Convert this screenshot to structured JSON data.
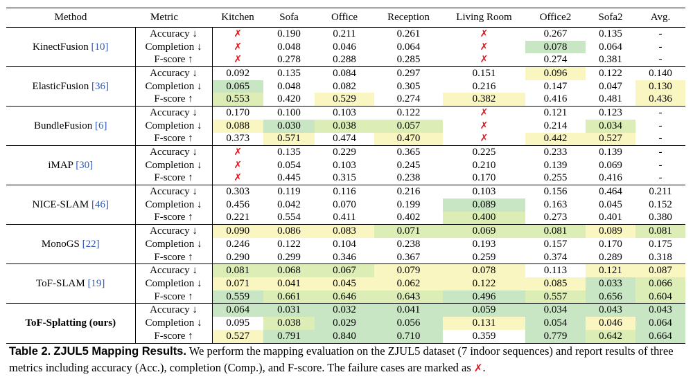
{
  "table": {
    "headers": [
      "Method",
      "Metric",
      "Kitchen",
      "Sofa",
      "Office",
      "Reception",
      "Living Room",
      "Office2",
      "Sofa2",
      "Avg."
    ],
    "fail_symbol": "✗",
    "colors": {
      "green": "#c9e6c4",
      "yellow": "#faf6c1",
      "yellow_green": "#dceeb6",
      "fail_red": "#e3141c",
      "cite_blue": "#2f58b6"
    },
    "groups": [
      {
        "method": "KinectFusion",
        "cite": "[10]",
        "bold": false,
        "rows": [
          {
            "metric": "Accuracy ↓",
            "cells": [
              {
                "v": "✗",
                "fail": true
              },
              {
                "v": "0.190"
              },
              {
                "v": "0.211"
              },
              {
                "v": "0.261"
              },
              {
                "v": "✗",
                "fail": true
              },
              {
                "v": "0.267"
              },
              {
                "v": "0.135"
              },
              {
                "v": "-"
              }
            ]
          },
          {
            "metric": "Completion ↓",
            "cells": [
              {
                "v": "✗",
                "fail": true
              },
              {
                "v": "0.048"
              },
              {
                "v": "0.046"
              },
              {
                "v": "0.064"
              },
              {
                "v": "✗",
                "fail": true
              },
              {
                "v": "0.078",
                "bg": "g"
              },
              {
                "v": "0.064"
              },
              {
                "v": "-"
              }
            ]
          },
          {
            "metric": "F-score ↑",
            "cells": [
              {
                "v": "✗",
                "fail": true
              },
              {
                "v": "0.278"
              },
              {
                "v": "0.288"
              },
              {
                "v": "0.285"
              },
              {
                "v": "✗",
                "fail": true
              },
              {
                "v": "0.274"
              },
              {
                "v": "0.381"
              },
              {
                "v": "-"
              }
            ]
          }
        ]
      },
      {
        "method": "ElasticFusion",
        "cite": "[36]",
        "bold": false,
        "rows": [
          {
            "metric": "Accuracy ↓",
            "cells": [
              {
                "v": "0.092"
              },
              {
                "v": "0.135"
              },
              {
                "v": "0.084"
              },
              {
                "v": "0.297"
              },
              {
                "v": "0.151"
              },
              {
                "v": "0.096",
                "bg": "y"
              },
              {
                "v": "0.122"
              },
              {
                "v": "0.140"
              }
            ]
          },
          {
            "metric": "Completion ↓",
            "cells": [
              {
                "v": "0.065",
                "bold": true,
                "bg": "g"
              },
              {
                "v": "0.048"
              },
              {
                "v": "0.082"
              },
              {
                "v": "0.305"
              },
              {
                "v": "0.216"
              },
              {
                "v": "0.147"
              },
              {
                "v": "0.047"
              },
              {
                "v": "0.130",
                "bg": "y"
              }
            ]
          },
          {
            "metric": "F-score ↑",
            "cells": [
              {
                "v": "0.553",
                "bg": "gy"
              },
              {
                "v": "0.420"
              },
              {
                "v": "0.529",
                "bg": "y"
              },
              {
                "v": "0.274"
              },
              {
                "v": "0.382",
                "bg": "y"
              },
              {
                "v": "0.416"
              },
              {
                "v": "0.481"
              },
              {
                "v": "0.436",
                "bg": "y"
              }
            ]
          }
        ]
      },
      {
        "method": "BundleFusion",
        "cite": "[6]",
        "bold": false,
        "rows": [
          {
            "metric": "Accuracy ↓",
            "cells": [
              {
                "v": "0.170"
              },
              {
                "v": "0.100"
              },
              {
                "v": "0.103"
              },
              {
                "v": "0.122"
              },
              {
                "v": "✗",
                "fail": true
              },
              {
                "v": "0.121"
              },
              {
                "v": "0.123"
              },
              {
                "v": "-"
              }
            ]
          },
          {
            "metric": "Completion ↓",
            "cells": [
              {
                "v": "0.088",
                "bg": "y"
              },
              {
                "v": "0.030",
                "bold": true,
                "bg": "g"
              },
              {
                "v": "0.038",
                "bg": "gy"
              },
              {
                "v": "0.057",
                "bg": "gy"
              },
              {
                "v": "✗",
                "fail": true
              },
              {
                "v": "0.214"
              },
              {
                "v": "0.034",
                "bg": "gy"
              },
              {
                "v": "-"
              }
            ]
          },
          {
            "metric": "F-score ↑",
            "cells": [
              {
                "v": "0.373"
              },
              {
                "v": "0.571",
                "bg": "y"
              },
              {
                "v": "0.474"
              },
              {
                "v": "0.470",
                "bg": "y"
              },
              {
                "v": "✗",
                "fail": true
              },
              {
                "v": "0.442",
                "bg": "y"
              },
              {
                "v": "0.527",
                "bg": "y"
              },
              {
                "v": "-"
              }
            ]
          }
        ]
      },
      {
        "method": "iMAP",
        "cite": "[30]",
        "bold": false,
        "rows": [
          {
            "metric": "Accuracy ↓",
            "cells": [
              {
                "v": "✗",
                "fail": true
              },
              {
                "v": "0.135"
              },
              {
                "v": "0.229"
              },
              {
                "v": "0.365"
              },
              {
                "v": "0.225"
              },
              {
                "v": "0.233"
              },
              {
                "v": "0.139"
              },
              {
                "v": "-"
              }
            ]
          },
          {
            "metric": "Completion ↓",
            "cells": [
              {
                "v": "✗",
                "fail": true
              },
              {
                "v": "0.054"
              },
              {
                "v": "0.103"
              },
              {
                "v": "0.245"
              },
              {
                "v": "0.210"
              },
              {
                "v": "0.139"
              },
              {
                "v": "0.069"
              },
              {
                "v": "-"
              }
            ]
          },
          {
            "metric": "F-score ↑",
            "cells": [
              {
                "v": "✗",
                "fail": true
              },
              {
                "v": "0.445"
              },
              {
                "v": "0.315"
              },
              {
                "v": "0.238"
              },
              {
                "v": "0.170"
              },
              {
                "v": "0.255"
              },
              {
                "v": "0.416"
              },
              {
                "v": "-"
              }
            ]
          }
        ]
      },
      {
        "method": "NICE-SLAM",
        "cite": "[46]",
        "bold": false,
        "rows": [
          {
            "metric": "Accuracy ↓",
            "cells": [
              {
                "v": "0.303"
              },
              {
                "v": "0.119"
              },
              {
                "v": "0.116"
              },
              {
                "v": "0.216"
              },
              {
                "v": "0.103"
              },
              {
                "v": "0.156"
              },
              {
                "v": "0.464"
              },
              {
                "v": "0.211"
              }
            ]
          },
          {
            "metric": "Completion ↓",
            "cells": [
              {
                "v": "0.456"
              },
              {
                "v": "0.042"
              },
              {
                "v": "0.070"
              },
              {
                "v": "0.199"
              },
              {
                "v": "0.089",
                "bold": true,
                "bg": "g"
              },
              {
                "v": "0.163"
              },
              {
                "v": "0.045"
              },
              {
                "v": "0.152"
              }
            ]
          },
          {
            "metric": "F-score ↑",
            "cells": [
              {
                "v": "0.221"
              },
              {
                "v": "0.554"
              },
              {
                "v": "0.411"
              },
              {
                "v": "0.402"
              },
              {
                "v": "0.400",
                "bg": "gy"
              },
              {
                "v": "0.273"
              },
              {
                "v": "0.401"
              },
              {
                "v": "0.380"
              }
            ]
          }
        ]
      },
      {
        "method": "MonoGS",
        "cite": "[22]",
        "bold": false,
        "rows": [
          {
            "metric": "Accuracy ↓",
            "cells": [
              {
                "v": "0.090",
                "bg": "y"
              },
              {
                "v": "0.086",
                "bg": "y"
              },
              {
                "v": "0.083",
                "bg": "y"
              },
              {
                "v": "0.071",
                "bg": "gy"
              },
              {
                "v": "0.069",
                "bg": "gy"
              },
              {
                "v": "0.081",
                "bg": "gy"
              },
              {
                "v": "0.089",
                "bg": "y"
              },
              {
                "v": "0.081",
                "bg": "gy"
              }
            ]
          },
          {
            "metric": "Completion ↓",
            "cells": [
              {
                "v": "0.246"
              },
              {
                "v": "0.122"
              },
              {
                "v": "0.104"
              },
              {
                "v": "0.238"
              },
              {
                "v": "0.193"
              },
              {
                "v": "0.157"
              },
              {
                "v": "0.170"
              },
              {
                "v": "0.175"
              }
            ]
          },
          {
            "metric": "F-score ↑",
            "cells": [
              {
                "v": "0.290"
              },
              {
                "v": "0.299"
              },
              {
                "v": "0.346"
              },
              {
                "v": "0.367"
              },
              {
                "v": "0.259"
              },
              {
                "v": "0.374"
              },
              {
                "v": "0.289"
              },
              {
                "v": "0.318"
              }
            ]
          }
        ]
      },
      {
        "method": "ToF-SLAM",
        "cite": "[19]",
        "bold": false,
        "rows": [
          {
            "metric": "Accuracy ↓",
            "cells": [
              {
                "v": "0.081",
                "bg": "gy"
              },
              {
                "v": "0.068",
                "bg": "gy"
              },
              {
                "v": "0.067",
                "bg": "gy"
              },
              {
                "v": "0.079",
                "bg": "y"
              },
              {
                "v": "0.078",
                "bg": "y"
              },
              {
                "v": "0.113"
              },
              {
                "v": "0.121",
                "bg": "y"
              },
              {
                "v": "0.087",
                "bg": "y"
              }
            ]
          },
          {
            "metric": "Completion ↓",
            "cells": [
              {
                "v": "0.071",
                "bg": "y"
              },
              {
                "v": "0.041",
                "bg": "y"
              },
              {
                "v": "0.045",
                "bg": "y"
              },
              {
                "v": "0.062",
                "bg": "y"
              },
              {
                "v": "0.122",
                "bg": "y"
              },
              {
                "v": "0.085",
                "bg": "y"
              },
              {
                "v": "0.033",
                "bold": true,
                "bg": "g"
              },
              {
                "v": "0.066",
                "bg": "gy"
              }
            ]
          },
          {
            "metric": "F-score ↑",
            "cells": [
              {
                "v": "0.559",
                "bold": true,
                "bg": "g"
              },
              {
                "v": "0.661",
                "bg": "gy"
              },
              {
                "v": "0.646",
                "bg": "gy"
              },
              {
                "v": "0.643",
                "bg": "gy"
              },
              {
                "v": "0.496",
                "bold": true,
                "bg": "g"
              },
              {
                "v": "0.557",
                "bg": "gy"
              },
              {
                "v": "0.656",
                "bold": true,
                "bg": "g"
              },
              {
                "v": "0.604",
                "bg": "gy"
              }
            ]
          }
        ]
      },
      {
        "method": "ToF-Splatting (ours)",
        "cite": "",
        "bold": true,
        "rows": [
          {
            "metric": "Accuracy ↓",
            "cells": [
              {
                "v": "0.064",
                "bold": true,
                "bg": "g"
              },
              {
                "v": "0.031",
                "bold": true,
                "bg": "g"
              },
              {
                "v": "0.032",
                "bold": true,
                "bg": "g"
              },
              {
                "v": "0.041",
                "bold": true,
                "bg": "g"
              },
              {
                "v": "0.059",
                "bold": true,
                "bg": "g"
              },
              {
                "v": "0.034",
                "bold": true,
                "bg": "g"
              },
              {
                "v": "0.043",
                "bold": true,
                "bg": "g"
              },
              {
                "v": "0.043",
                "bold": true,
                "bg": "g"
              }
            ]
          },
          {
            "metric": "Completion ↓",
            "cells": [
              {
                "v": "0.095"
              },
              {
                "v": "0.038",
                "bg": "gy"
              },
              {
                "v": "0.029",
                "bold": true,
                "bg": "g"
              },
              {
                "v": "0.056",
                "bold": true,
                "bg": "g"
              },
              {
                "v": "0.131",
                "bg": "y"
              },
              {
                "v": "0.054",
                "bold": true,
                "bg": "g"
              },
              {
                "v": "0.046",
                "bg": "y"
              },
              {
                "v": "0.064",
                "bold": true,
                "bg": "g"
              }
            ]
          },
          {
            "metric": "F-score ↑",
            "cells": [
              {
                "v": "0.527",
                "bg": "y"
              },
              {
                "v": "0.791",
                "bold": true,
                "bg": "g"
              },
              {
                "v": "0.840",
                "bold": true,
                "bg": "g"
              },
              {
                "v": "0.710",
                "bold": true,
                "bg": "g"
              },
              {
                "v": "0.359"
              },
              {
                "v": "0.779",
                "bold": true,
                "bg": "g"
              },
              {
                "v": "0.642",
                "bg": "gy"
              },
              {
                "v": "0.664",
                "bold": true,
                "bg": "g"
              }
            ]
          }
        ]
      }
    ]
  },
  "caption": {
    "label": "Table 2.",
    "title": "ZJUL5 Mapping Results.",
    "text": "We perform the mapping evaluation on the ZJUL5 dataset (7 indoor sequences) and report results of three metrics including accuracy (Acc.), completion (Comp.), and F-score. The failure cases are marked as",
    "end_symbol": "✗",
    "end_punct": "."
  }
}
